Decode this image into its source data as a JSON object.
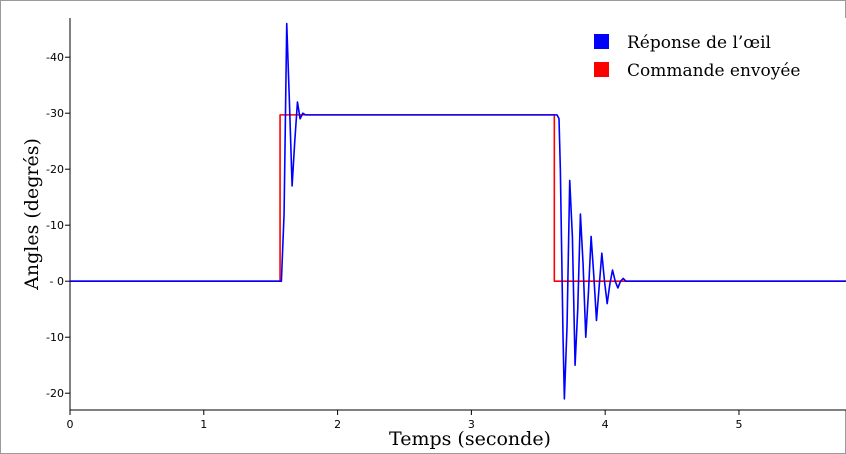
{
  "chart_data": {
    "type": "line",
    "xlabel": "Temps (seconde)",
    "ylabel": "Angles (degrés)",
    "xlim": [
      0,
      5.8
    ],
    "ylim": [
      -23,
      47
    ],
    "x_ticks": [
      0,
      1,
      2,
      3,
      4,
      5
    ],
    "y_ticks": [
      {
        "value": 40,
        "label": "-40"
      },
      {
        "value": 30,
        "label": "-30"
      },
      {
        "value": 20,
        "label": "-20"
      },
      {
        "value": 10,
        "label": "-10"
      },
      {
        "value": 0,
        "label": "- 0"
      },
      {
        "value": -10,
        "label": "-10"
      },
      {
        "value": -20,
        "label": "-20"
      }
    ],
    "grid": false,
    "legend_position": "top-right",
    "series": [
      {
        "name": "Réponse de l’œil",
        "color": "#0000ff",
        "x": [
          0,
          1.57,
          1.58,
          1.6,
          1.62,
          1.64,
          1.66,
          1.68,
          1.7,
          1.72,
          1.74,
          1.76,
          1.8,
          3.62,
          3.64,
          3.655,
          3.665,
          3.675,
          3.685,
          3.695,
          3.715,
          3.735,
          3.755,
          3.775,
          3.795,
          3.815,
          3.835,
          3.855,
          3.875,
          3.895,
          3.915,
          3.935,
          3.955,
          3.975,
          3.995,
          4.015,
          4.035,
          4.055,
          4.075,
          4.095,
          4.115,
          4.135,
          4.155,
          4.175,
          4.2,
          4.25,
          5.8
        ],
        "y": [
          0,
          0,
          0,
          12,
          46,
          32,
          17,
          25,
          32,
          29,
          30,
          29.7,
          29.7,
          29.7,
          29.7,
          29,
          20,
          5,
          -10,
          -21,
          -8,
          18,
          8,
          -15,
          -5,
          12,
          3,
          -10,
          -2,
          8,
          1,
          -7,
          -1,
          5,
          0,
          -4,
          -0.5,
          2,
          0,
          -1.2,
          0,
          0.5,
          0,
          0,
          0,
          0,
          0
        ]
      },
      {
        "name": "Commande envoyée",
        "color": "#ff0000",
        "x": [
          0,
          1.57,
          1.57,
          3.62,
          3.62,
          5.8
        ],
        "y": [
          0,
          0,
          29.7,
          29.7,
          0,
          0
        ]
      }
    ]
  }
}
